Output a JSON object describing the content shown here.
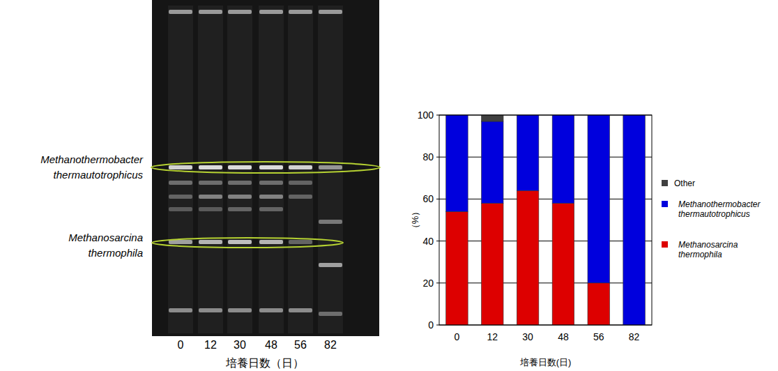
{
  "gel": {
    "lanes": [
      0,
      12,
      30,
      48,
      56,
      82
    ],
    "xlabel": "培養日数（日）",
    "bands": [
      {
        "label": "Methanothermobacter thermautotrophicus"
      },
      {
        "label": "Methanosarcina thermophila"
      }
    ]
  },
  "chart_data": {
    "type": "bar",
    "stacked": true,
    "xlabel": "培養日数(日)",
    "ylabel": "（%）",
    "categories": [
      "0",
      "12",
      "30",
      "48",
      "56",
      "82"
    ],
    "series": [
      {
        "name": "Methanosarcina thermophila",
        "color": "#dd0000",
        "values": [
          54,
          58,
          64,
          58,
          20,
          0
        ]
      },
      {
        "name": "Methanothermobacter thermautotrophicus",
        "color": "#0000dd",
        "values": [
          46,
          39,
          36,
          42,
          80,
          100
        ]
      },
      {
        "name": "Other",
        "color": "#404040",
        "values": [
          0,
          3,
          0,
          0,
          0,
          0
        ]
      }
    ],
    "ylim": [
      0,
      100
    ],
    "yticks": [
      0,
      20,
      40,
      60,
      80,
      100
    ],
    "grid": true,
    "legend": "right"
  }
}
